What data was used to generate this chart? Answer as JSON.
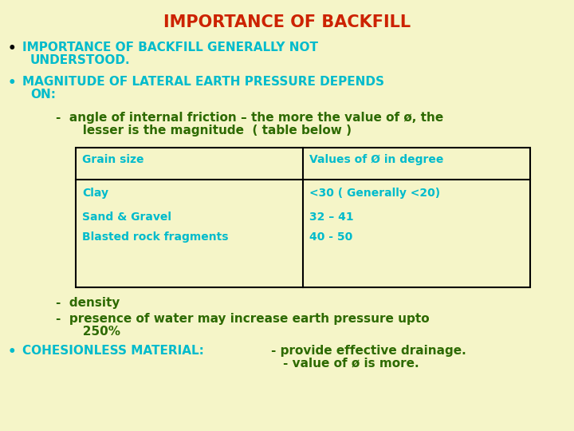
{
  "background_color": "#f5f5c8",
  "title": "IMPORTANCE OF BACKFILL",
  "title_color": "#cc2200",
  "title_fontsize": 15,
  "text_color_teal": "#00bbcc",
  "text_color_green": "#2d6a00",
  "bullet1_line1": "IMPORTANCE OF BACKFILL GENERALLY NOT",
  "bullet1_line2": "UNDERSTOOD.",
  "bullet2_line1": "MAGNITUDE OF LATERAL EARTH PRESSURE DEPENDS",
  "bullet2_line2": "ON:",
  "dash1_line1": "-  angle of internal friction – the more the value of ø, the",
  "dash1_line2": "   lesser is the magnitude  ( table below )",
  "table_headers": [
    "Grain size",
    "Values of Ø in degree"
  ],
  "table_rows": [
    [
      "Clay",
      "<30 ( Generally <20)"
    ],
    [
      "Sand & Gravel",
      "32 – 41"
    ],
    [
      "Blasted rock fragments",
      "40 - 50"
    ]
  ],
  "dash2": "-  density",
  "dash3_line1": "-  presence of water may increase earth pressure upto",
  "dash3_line2": "   250%",
  "bullet3_label": "COHESIONLESS MATERIAL:",
  "bullet3_text_line1": "- provide effective drainage.",
  "bullet3_text_line2": "- value of ø is more.",
  "font_size_body": 11,
  "font_size_table": 10
}
